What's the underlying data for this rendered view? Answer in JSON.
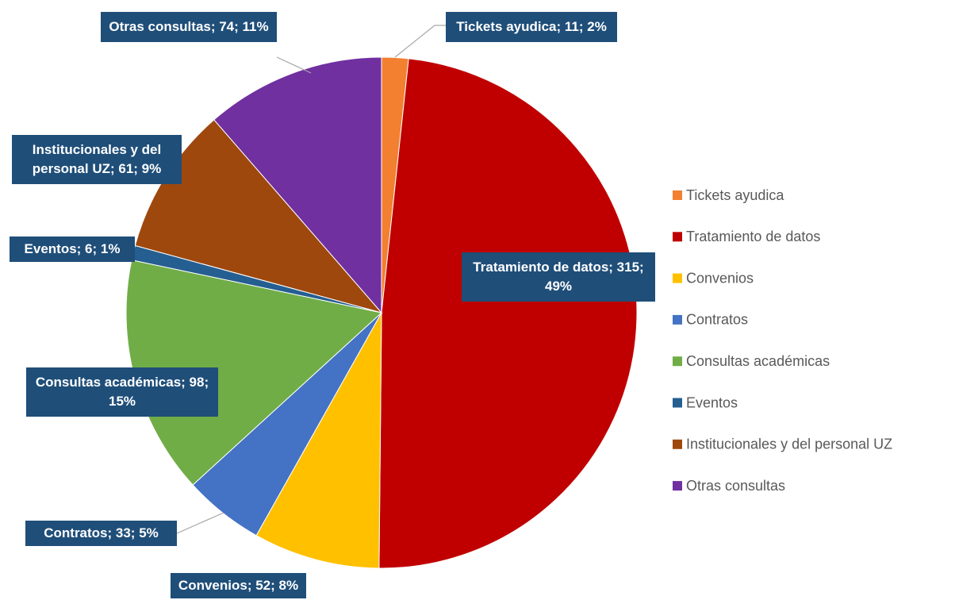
{
  "chart_data": {
    "type": "pie",
    "categories": [
      "Tickets ayudica",
      "Tratamiento de datos",
      "Convenios",
      "Contratos",
      "Consultas académicas",
      "Eventos",
      "Institucionales y del personal UZ",
      "Otras consultas"
    ],
    "values": [
      11,
      315,
      52,
      33,
      98,
      6,
      61,
      74
    ],
    "value_labels": [
      "Tickets ayudica; 11; 2%",
      "Tratamiento de datos; 315; 49%",
      "Convenios; 52; 8%",
      "Contratos; 33; 5%",
      "Consultas académicas; 98; 15%",
      "Eventos; 6; 1%",
      "Institucionales y del personal UZ; 61; 9%",
      "Otras consultas; 74; 11%"
    ],
    "colors": [
      "#f28030",
      "#c00000",
      "#ffc000",
      "#4472c4",
      "#70ad47",
      "#255e91",
      "#9e480e",
      "#7030a0"
    ],
    "legend": "right"
  }
}
